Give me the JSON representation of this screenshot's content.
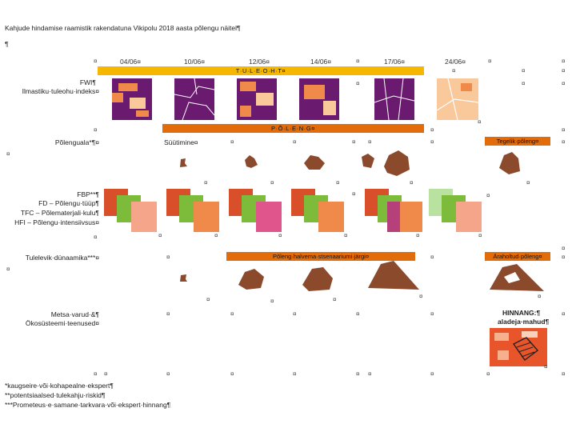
{
  "title": "Kahjude hindamise raamistik rakendatuna Vikipolu 2018 aasta põlengu näitel¶",
  "para_mark": "¶",
  "cell_mark": "¤",
  "dates": [
    "04/06¤",
    "10/06¤",
    "12/06¤",
    "14/06¤",
    "17/06¤",
    "24/06¤"
  ],
  "bars": {
    "tuleoht": "T·U·L·E·O·H·T¤",
    "polend": "P·Õ·L·E·N·G¤",
    "tegelik": "Tegelik·põleng¤",
    "halvim": "Põleng·halvema·stsenaariumi·järgi¤",
    "araholtud": "Äraholtud·põleng¤"
  },
  "row_labels": {
    "fwi_1": "FWI¶",
    "fwi_2": "Ilmastiku·tuleohu·indeks¤",
    "polenguala": "Põlenguala*¶¤",
    "fbp_1": "FBP**¶",
    "fbp_2": "FD – Põlengu·tüüp¶",
    "fbp_3": "TFC – Põlematerjali·kulu¶",
    "fbp_4": "HFI – Põlengu·intensiivsus¤",
    "dynamics": "Tulelevik·dünaamika***¤",
    "metsa_1": "Metsa·varud·&¶",
    "metsa_2": "Ökosüsteemi·teenused¤"
  },
  "sytimine": "Süütimine¤",
  "hinnang": {
    "line1": "HINNANG:¶",
    "line2": "aladeja·mahud¶"
  },
  "footnotes": [
    "*kaugseire·või·kohapealne·ekspert¶",
    "**potentsiaalsed·tulekahju·riskid¶",
    "***Prometeus·e·samane·tarkvara·või·ekspert·hinnang¶"
  ],
  "colors": {
    "tuleoht_bar": "#f5b700",
    "polend_bar": "#e36c0a",
    "dynamics_bar": "#e36c0a",
    "fwi_purple": "#6a1b6f",
    "fwi_orange": "#f08a4b",
    "fwi_peach": "#f9c89b",
    "burn_brown": "#8b4a2b"
  },
  "icons": [
    "map-tile-icon",
    "burn-shape-icon",
    "fbp-stack-icon"
  ]
}
